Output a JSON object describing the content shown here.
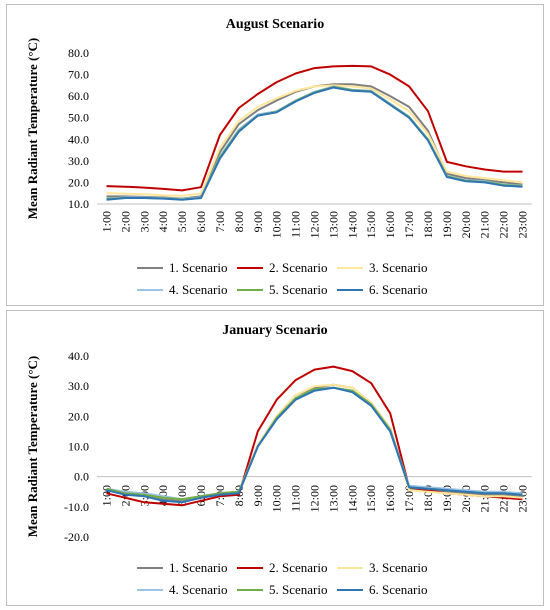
{
  "chart_data": [
    {
      "type": "line",
      "title": "August Scenario",
      "ylabel": "Mean Radiant Temperature (°C)",
      "xlabel": "",
      "ylim": [
        10,
        80
      ],
      "ytick_step": 10,
      "yticks": [
        "10.0",
        "20.0",
        "30.0",
        "40.0",
        "50.0",
        "60.0",
        "70.0",
        "80.0"
      ],
      "grid": false,
      "legend": "bottom",
      "categories": [
        "1:00",
        "2:00",
        "3:00",
        "4:00",
        "5:00",
        "6:00",
        "7:00",
        "8:00",
        "9:00",
        "10:00",
        "11:00",
        "12:00",
        "13:00",
        "14:00",
        "15:00",
        "16:00",
        "17:00",
        "18:00",
        "19:00",
        "20:00",
        "21:00",
        "22:00",
        "23:00"
      ],
      "series": [
        {
          "name": "1. Scenario",
          "color": "#808080",
          "values": [
            13.5,
            13.5,
            13.3,
            13.0,
            12.5,
            13.5,
            34.0,
            47.0,
            53.5,
            58.0,
            62.0,
            64.5,
            65.5,
            65.5,
            64.5,
            60.0,
            55.0,
            44.0,
            24.0,
            22.0,
            21.0,
            20.0,
            19.0
          ]
        },
        {
          "name": "2. Scenario",
          "color": "#c00000",
          "values": [
            18.3,
            18.0,
            17.6,
            17.0,
            16.3,
            17.8,
            42.0,
            54.5,
            61.0,
            66.5,
            70.5,
            73.0,
            73.8,
            74.0,
            73.8,
            70.0,
            64.5,
            53.0,
            29.5,
            27.5,
            26.0,
            25.0,
            25.0
          ]
        },
        {
          "name": "3. Scenario",
          "color": "#ffe699",
          "values": [
            15.0,
            14.8,
            14.5,
            14.0,
            13.8,
            14.8,
            36.0,
            48.5,
            55.0,
            59.0,
            62.5,
            64.5,
            65.0,
            64.5,
            63.5,
            58.5,
            53.0,
            42.5,
            25.0,
            23.0,
            22.0,
            21.0,
            20.0
          ]
        },
        {
          "name": "4. Scenario",
          "color": "#9dc3e6",
          "values": [
            12.5,
            13.0,
            13.0,
            12.8,
            12.3,
            13.0,
            32.0,
            44.5,
            51.5,
            53.0,
            58.0,
            62.0,
            64.5,
            63.0,
            62.5,
            56.5,
            50.5,
            40.0,
            23.0,
            21.0,
            20.5,
            19.0,
            18.5
          ]
        },
        {
          "name": "5. Scenario",
          "color": "#70ad47",
          "values": [
            12.3,
            12.8,
            12.8,
            12.6,
            12.1,
            12.8,
            31.5,
            44.0,
            51.0,
            52.8,
            57.8,
            61.8,
            64.3,
            62.8,
            62.2,
            56.2,
            50.3,
            39.8,
            22.8,
            20.8,
            20.2,
            18.8,
            18.2
          ]
        },
        {
          "name": "6. Scenario",
          "color": "#2e75b6",
          "values": [
            12.0,
            12.8,
            12.8,
            12.5,
            12.0,
            12.8,
            31.0,
            43.5,
            51.0,
            52.5,
            57.5,
            61.5,
            64.0,
            62.5,
            62.0,
            56.0,
            50.0,
            39.5,
            22.5,
            20.5,
            20.0,
            18.5,
            18.0
          ]
        }
      ]
    },
    {
      "type": "line",
      "title": "January Scenario",
      "ylabel": "Mean Radiant Temperature (°C)",
      "xlabel": "",
      "ylim": [
        -20,
        40
      ],
      "ytick_step": 10,
      "yticks": [
        "-20.0",
        "-10.0",
        "0.0",
        "10.0",
        "20.0",
        "30.0",
        "40.0"
      ],
      "grid": false,
      "legend": "bottom",
      "categories": [
        "1:00",
        "2:00",
        "3:00",
        "4:00",
        "5:00",
        "6:00",
        "7:00",
        "8:00",
        "9:00",
        "10:00",
        "11:00",
        "12:00",
        "13:00",
        "14:00",
        "15:00",
        "16:00",
        "17:00",
        "18:00",
        "19:00",
        "20:00",
        "21:00",
        "22:00",
        "23:00"
      ],
      "series": [
        {
          "name": "1. Scenario",
          "color": "#808080",
          "values": [
            -4.5,
            -5.5,
            -6.0,
            -7.5,
            -8.0,
            -6.5,
            -5.5,
            -5.0,
            10.5,
            20.0,
            27.0,
            29.5,
            30.5,
            29.5,
            24.5,
            16.0,
            -4.0,
            -4.5,
            -5.0,
            -5.5,
            -6.0,
            -6.0,
            -6.5
          ]
        },
        {
          "name": "2. Scenario",
          "color": "#c00000",
          "values": [
            -5.5,
            -7.0,
            -8.5,
            -9.0,
            -9.5,
            -8.0,
            -6.5,
            -6.0,
            15.0,
            25.5,
            32.0,
            35.5,
            36.5,
            35.0,
            31.0,
            21.0,
            -3.5,
            -4.5,
            -5.5,
            -6.0,
            -6.5,
            -7.0,
            -7.5
          ]
        },
        {
          "name": "3. Scenario",
          "color": "#ffe699",
          "values": [
            -4.5,
            -5.5,
            -6.0,
            -7.0,
            -7.5,
            -6.5,
            -5.5,
            -5.0,
            10.5,
            20.0,
            27.0,
            30.0,
            30.5,
            29.5,
            24.5,
            16.0,
            -4.5,
            -5.0,
            -5.5,
            -6.0,
            -6.5,
            -6.5,
            -7.0
          ]
        },
        {
          "name": "4. Scenario",
          "color": "#9dc3e6",
          "values": [
            -4.0,
            -5.0,
            -5.5,
            -6.5,
            -7.5,
            -6.5,
            -5.5,
            -5.0,
            10.0,
            19.5,
            26.0,
            29.0,
            29.5,
            28.5,
            24.0,
            15.5,
            -3.0,
            -3.5,
            -4.0,
            -4.5,
            -5.0,
            -5.0,
            -5.5
          ]
        },
        {
          "name": "5. Scenario",
          "color": "#70ad47",
          "values": [
            -4.0,
            -5.5,
            -6.0,
            -7.0,
            -7.5,
            -6.5,
            -5.5,
            -5.0,
            10.0,
            19.5,
            26.0,
            29.0,
            29.5,
            28.5,
            24.0,
            15.5,
            -3.5,
            -4.0,
            -4.5,
            -5.0,
            -5.5,
            -5.5,
            -6.0
          ]
        },
        {
          "name": "6. Scenario",
          "color": "#2e75b6",
          "values": [
            -4.5,
            -6.0,
            -6.5,
            -8.0,
            -8.5,
            -7.0,
            -6.0,
            -5.5,
            10.0,
            19.0,
            25.5,
            28.5,
            29.5,
            28.0,
            23.5,
            15.0,
            -3.5,
            -4.0,
            -4.5,
            -5.0,
            -5.5,
            -5.5,
            -6.0
          ]
        }
      ]
    }
  ]
}
